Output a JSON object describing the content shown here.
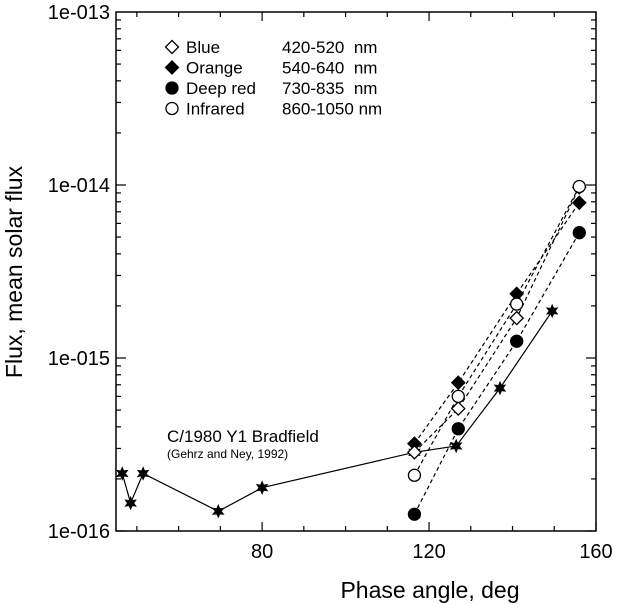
{
  "chart_data": {
    "type": "scatter",
    "title": "",
    "xlabel": "Phase angle, deg",
    "ylabel": "Flux, mean solar flux",
    "xlim": [
      45,
      160
    ],
    "ylim": [
      1e-16,
      1e-13
    ],
    "y_scale": "log",
    "grid": false,
    "x_ticks": [
      {
        "value": 80,
        "label": "80"
      },
      {
        "value": 120,
        "label": "120"
      },
      {
        "value": 160,
        "label": "160"
      }
    ],
    "y_ticks": [
      {
        "value": 1e-16,
        "label": "1e-016"
      },
      {
        "value": 1e-15,
        "label": "1e-015"
      },
      {
        "value": 1e-14,
        "label": "1e-014"
      },
      {
        "value": 1e-13,
        "label": "1e-013"
      }
    ],
    "legend_position": "top-left",
    "legend": [
      {
        "key": "blue",
        "label": "Blue",
        "range": "420-520  nm"
      },
      {
        "key": "orange",
        "label": "Orange",
        "range": "540-640  nm"
      },
      {
        "key": "deepred",
        "label": "Deep red",
        "range": "730-835  nm"
      },
      {
        "key": "infrared",
        "label": "Infrared",
        "range": "860-1050 nm"
      }
    ],
    "annotation": {
      "title": "C/1980 Y1  Bradfield",
      "subtitle": "(Gehrz and Ney, 1992)"
    },
    "series": [
      {
        "key": "total",
        "marker": "star",
        "line": "solid",
        "x": [
          46.5,
          48.5,
          51.5,
          69.5,
          80.0,
          116.5,
          126.5,
          137.0,
          149.5
        ],
        "y": [
          2.15e-16,
          1.45e-16,
          2.15e-16,
          1.3e-16,
          1.78e-16,
          2.85e-16,
          3.1e-16,
          6.7e-16,
          1.87e-15
        ]
      },
      {
        "key": "blue",
        "name": "Blue",
        "marker": "open-diamond",
        "line": "dashed",
        "x": [
          116.5,
          127.0,
          141.0,
          156.0
        ],
        "y": [
          2.85e-16,
          5.1e-16,
          1.7e-15,
          9.7e-15
        ]
      },
      {
        "key": "orange",
        "name": "Orange",
        "marker": "filled-diamond",
        "line": "dashed",
        "x": [
          116.5,
          127.0,
          141.0,
          156.0
        ],
        "y": [
          3.2e-16,
          7.2e-16,
          2.35e-15,
          7.9e-15
        ]
      },
      {
        "key": "deepred",
        "name": "Deep red",
        "marker": "filled-circle",
        "line": "dashed",
        "x": [
          116.5,
          127.0,
          141.0,
          156.0
        ],
        "y": [
          1.25e-16,
          3.9e-16,
          1.25e-15,
          5.3e-15
        ]
      },
      {
        "key": "infrared",
        "name": "Infrared",
        "marker": "open-circle",
        "line": "dashed",
        "x": [
          116.5,
          127.0,
          141.0,
          156.0
        ],
        "y": [
          2.1e-16,
          6e-16,
          2.05e-15,
          9.8e-15
        ]
      }
    ]
  }
}
